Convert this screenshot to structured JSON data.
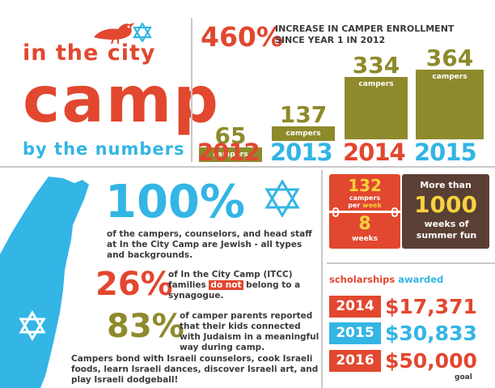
{
  "logo": {
    "line1": "in the city",
    "line2": "CAMP",
    "line3": "by the numbers",
    "bird": "bird-icon",
    "star": "star-of-david-icon"
  },
  "enrollment": {
    "headline_value": "460%",
    "headline_text": "INCREASE IN CAMPER ENROLLMENT SINCE YEAR 1 IN 2012",
    "unit_label": "campers",
    "bars": [
      {
        "year": "2012",
        "value": "65"
      },
      {
        "year": "2013",
        "value": "137"
      },
      {
        "year": "2014",
        "value": "334"
      },
      {
        "year": "2015",
        "value": "364"
      }
    ]
  },
  "jewish_staff": {
    "value": "100%",
    "text": "of the campers, counselors, and head staff at In the City Camp are Jewish - all types and backgrounds."
  },
  "synagogue": {
    "value": "26%",
    "text_before": "of In the City Camp (ITCC) families",
    "highlight": "do not",
    "text_after": "belong to a synagogue."
  },
  "judaism_connection": {
    "value": "83%",
    "text": "of camper parents reported that their kids connected with Judaism in a meaningful way during camp."
  },
  "israel": {
    "text": "Campers bond with Israeli counselors, cook Israeli foods, learn Israeli dances, discover Israeli art, and play Israeli dodgeball!"
  },
  "per_week": {
    "value": "132",
    "label_line1": "campers",
    "label_line2_a": "per",
    "label_line2_b": "week",
    "weeks_value": "8",
    "weeks_label": "weeks"
  },
  "summer_fun": {
    "prefix": "More than",
    "value": "1000",
    "suffix": "weeks of summer fun"
  },
  "scholarships": {
    "heading_a": "scholarships",
    "heading_b": "awarded",
    "rows": [
      {
        "year": "2014",
        "amount": "$17,371"
      },
      {
        "year": "2015",
        "amount": "$30,833"
      },
      {
        "year": "2016",
        "amount": "$50,000"
      }
    ],
    "goal_label": "goal"
  },
  "colors": {
    "red": "#e2472f",
    "olive": "#8e8a2c",
    "cyan": "#33b5e5",
    "brown": "#5a3f34",
    "yellow": "#f7d23e"
  }
}
